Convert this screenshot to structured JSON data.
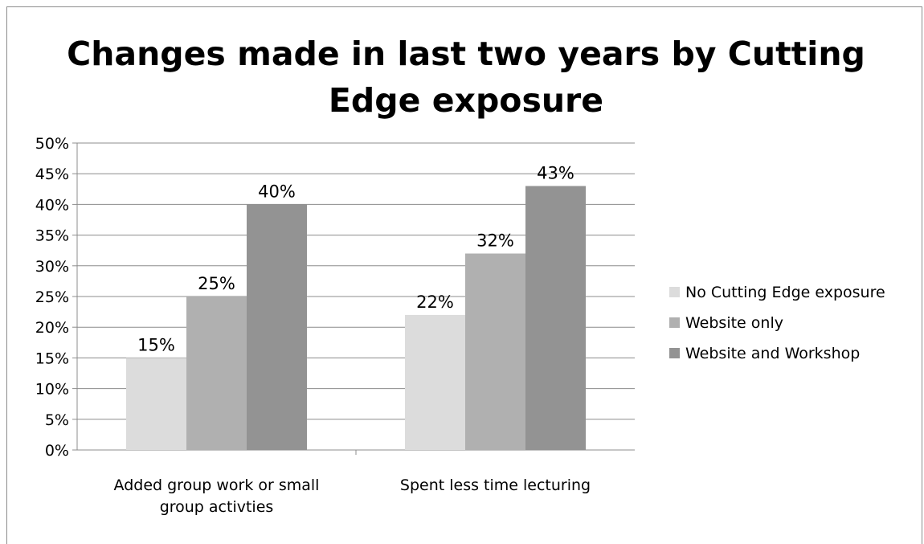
{
  "chart_data": {
    "type": "bar",
    "title": "Changes made in last two years by Cutting Edge exposure",
    "categories": [
      [
        "Added group work or small",
        "group activties"
      ],
      [
        "Spent less time lecturing"
      ]
    ],
    "series": [
      {
        "name": "No Cutting Edge exposure",
        "values": [
          15,
          22
        ],
        "labels": [
          "15%",
          "22%"
        ],
        "color": "#dcdcdc"
      },
      {
        "name": "Website only",
        "values": [
          25,
          32
        ],
        "labels": [
          "25%",
          "32%"
        ],
        "color": "#b0b0b0"
      },
      {
        "name": "Website and Workshop",
        "values": [
          40,
          43
        ],
        "labels": [
          "40%",
          "43%"
        ],
        "color": "#939393"
      }
    ],
    "yticks": [
      "0%",
      "5%",
      "10%",
      "15%",
      "20%",
      "25%",
      "30%",
      "35%",
      "40%",
      "45%",
      "50%"
    ],
    "ylim": [
      0,
      50
    ],
    "grid": true,
    "legend_position": "right"
  }
}
